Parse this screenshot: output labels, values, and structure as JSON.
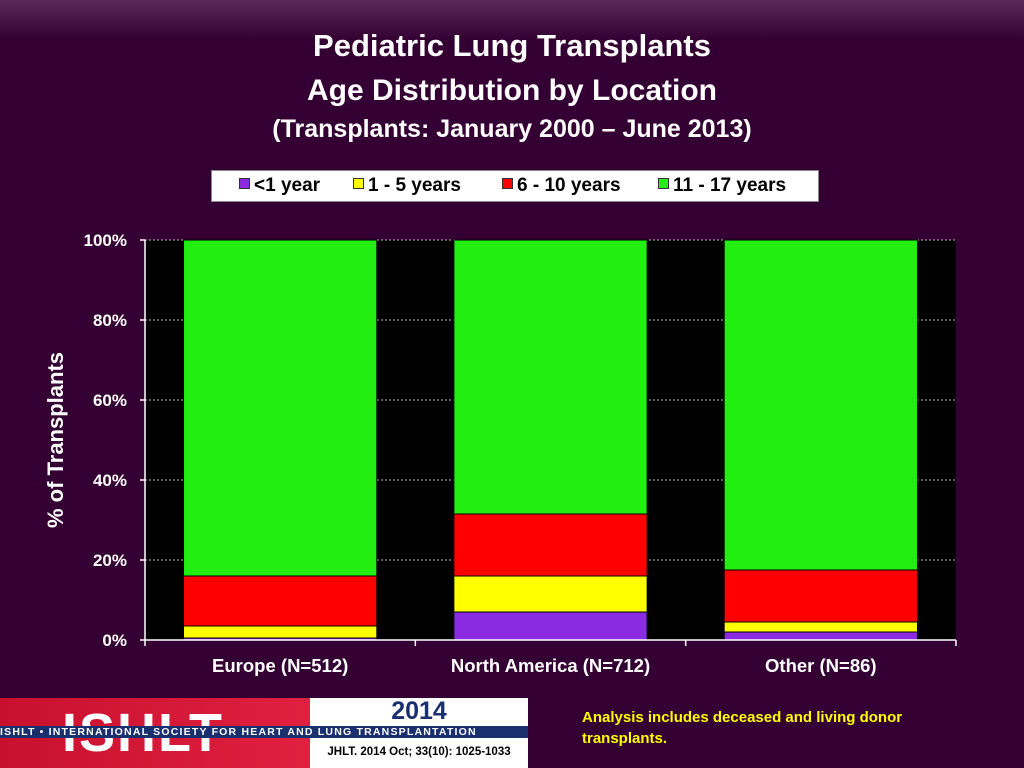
{
  "header": {
    "title": "Pediatric Lung Transplants",
    "subtitle": "Age Distribution by Location",
    "subtitle2": "(Transplants: January 2000 – June 2013)"
  },
  "chart_data": {
    "type": "bar",
    "stacked": true,
    "percent": true,
    "categories": [
      "Europe (N=512)",
      "North America (N=712)",
      "Other (N=86)"
    ],
    "series": [
      {
        "name": "<1 year",
        "color": "#8a2be2",
        "values": [
          0.5,
          7,
          2
        ]
      },
      {
        "name": "1 - 5 years",
        "color": "#ffff00",
        "values": [
          3,
          9,
          2.5
        ]
      },
      {
        "name": "6 - 10 years",
        "color": "#ff0000",
        "values": [
          12.5,
          15.5,
          13
        ]
      },
      {
        "name": "11 - 17 years",
        "color": "#22ee11",
        "values": [
          84,
          68.5,
          82.5
        ]
      }
    ],
    "ylabel": "% of Transplants",
    "ylim": [
      0,
      100
    ],
    "yticks": [
      "0%",
      "20%",
      "40%",
      "60%",
      "80%",
      "100%"
    ],
    "grid": true,
    "legend": "top"
  },
  "footer": {
    "logo_text": "ISHLT",
    "society": "ISHLT • INTERNATIONAL SOCIETY FOR HEART AND LUNG TRANSPLANTATION",
    "year": "2014",
    "citation": "JHLT. 2014 Oct; 33(10): 1025-1033",
    "note": "Analysis includes deceased and living donor transplants."
  }
}
